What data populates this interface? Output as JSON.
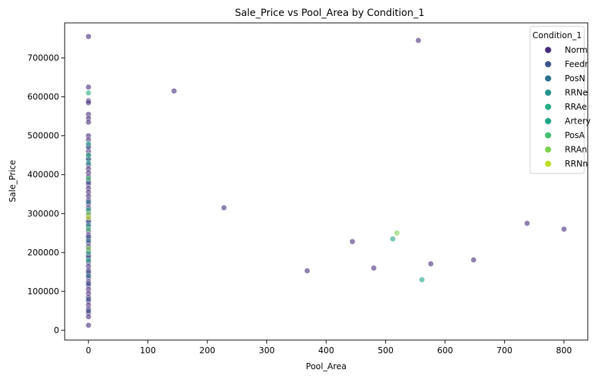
{
  "chart_data": {
    "type": "scatter",
    "title": "Sale_Price vs Pool_Area by Condition_1",
    "xlabel": "Pool_Area",
    "ylabel": "Sale_Price",
    "xlim": [
      -40,
      840
    ],
    "ylim": [
      -25000,
      790000
    ],
    "xticks": [
      0,
      100,
      200,
      300,
      400,
      500,
      600,
      700,
      800
    ],
    "yticks": [
      0,
      100000,
      200000,
      300000,
      400000,
      500000,
      600000,
      700000
    ],
    "grid": false,
    "legend": {
      "title": "Condition_1",
      "placement": "top-right",
      "entries": [
        {
          "name": "Norm",
          "color": "#472d7b"
        },
        {
          "name": "Feedr",
          "color": "#3b528b"
        },
        {
          "name": "PosN",
          "color": "#2c728e"
        },
        {
          "name": "RRNe",
          "color": "#21918c"
        },
        {
          "name": "RRAe",
          "color": "#28ae80"
        },
        {
          "name": "Artery",
          "color": "#20a486"
        },
        {
          "name": "PosA",
          "color": "#44bf70"
        },
        {
          "name": "RRAn",
          "color": "#7ad151"
        },
        {
          "name": "RRNn",
          "color": "#bddf26"
        }
      ]
    },
    "series": [
      {
        "name": "Norm",
        "points": [
          [
            0,
            755000
          ],
          [
            0,
            625000
          ],
          [
            0,
            590000
          ],
          [
            0,
            585000
          ],
          [
            0,
            555000
          ],
          [
            0,
            545000
          ],
          [
            0,
            535000
          ],
          [
            0,
            500000
          ],
          [
            0,
            490000
          ],
          [
            0,
            475000
          ],
          [
            0,
            460000
          ],
          [
            0,
            450000
          ],
          [
            0,
            440000
          ],
          [
            0,
            425000
          ],
          [
            0,
            415000
          ],
          [
            0,
            405000
          ],
          [
            0,
            395000
          ],
          [
            0,
            385000
          ],
          [
            0,
            375000
          ],
          [
            0,
            365000
          ],
          [
            0,
            355000
          ],
          [
            0,
            345000
          ],
          [
            0,
            335000
          ],
          [
            0,
            325000
          ],
          [
            0,
            315000
          ],
          [
            0,
            305000
          ],
          [
            0,
            295000
          ],
          [
            0,
            285000
          ],
          [
            0,
            275000
          ],
          [
            0,
            265000
          ],
          [
            0,
            255000
          ],
          [
            0,
            245000
          ],
          [
            0,
            235000
          ],
          [
            0,
            225000
          ],
          [
            0,
            215000
          ],
          [
            0,
            205000
          ],
          [
            0,
            195000
          ],
          [
            0,
            185000
          ],
          [
            0,
            175000
          ],
          [
            0,
            165000
          ],
          [
            0,
            155000
          ],
          [
            0,
            145000
          ],
          [
            0,
            135000
          ],
          [
            0,
            125000
          ],
          [
            0,
            115000
          ],
          [
            0,
            105000
          ],
          [
            0,
            95000
          ],
          [
            0,
            85000
          ],
          [
            0,
            75000
          ],
          [
            0,
            65000
          ],
          [
            0,
            55000
          ],
          [
            0,
            45000
          ],
          [
            0,
            35000
          ],
          [
            0,
            13000
          ],
          [
            144,
            615000
          ],
          [
            228,
            315000
          ],
          [
            368,
            153000
          ],
          [
            444,
            228000
          ],
          [
            480,
            160000
          ],
          [
            555,
            745000
          ],
          [
            576,
            171000
          ],
          [
            648,
            181000
          ],
          [
            738,
            275000
          ],
          [
            800,
            260000
          ]
        ]
      },
      {
        "name": "Feedr",
        "points": [
          [
            0,
            470000
          ],
          [
            0,
            380000
          ],
          [
            0,
            280000
          ],
          [
            0,
            240000
          ],
          [
            0,
            190000
          ],
          [
            0,
            150000
          ],
          [
            0,
            120000
          ],
          [
            0,
            80000
          ],
          [
            0,
            50000
          ]
        ]
      },
      {
        "name": "PosN",
        "points": [
          [
            0,
            440000
          ],
          [
            0,
            330000
          ],
          [
            0,
            230000
          ],
          [
            0,
            140000
          ]
        ]
      },
      {
        "name": "RRNe",
        "points": [
          [
            0,
            430000
          ],
          [
            0,
            270000
          ]
        ]
      },
      {
        "name": "RRAe",
        "points": [
          [
            0,
            610000
          ],
          [
            0,
            450000
          ],
          [
            0,
            200000
          ]
        ]
      },
      {
        "name": "Artery",
        "points": [
          [
            0,
            480000
          ],
          [
            0,
            310000
          ],
          [
            0,
            180000
          ],
          [
            512,
            235000
          ],
          [
            561,
            130000
          ]
        ]
      },
      {
        "name": "PosA",
        "points": [
          [
            0,
            390000
          ],
          [
            0,
            260000
          ]
        ]
      },
      {
        "name": "RRAn",
        "points": [
          [
            0,
            300000
          ],
          [
            0,
            210000
          ],
          [
            519,
            250000
          ]
        ]
      },
      {
        "name": "RRNn",
        "points": [
          [
            0,
            290000
          ]
        ]
      }
    ]
  }
}
